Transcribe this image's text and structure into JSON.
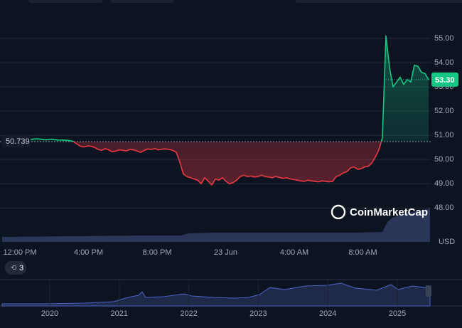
{
  "chart_data": {
    "type": "line",
    "values": [
      50.88,
      50.9,
      50.87,
      50.86,
      50.88,
      50.85,
      50.86,
      50.84,
      50.83,
      50.85,
      50.86,
      50.84,
      50.82,
      50.83,
      50.84,
      50.82,
      50.8,
      50.81,
      50.8,
      50.78,
      50.75,
      50.65,
      50.55,
      50.52,
      50.56,
      50.55,
      50.5,
      50.42,
      50.38,
      50.45,
      50.4,
      50.32,
      50.35,
      50.4,
      50.38,
      50.36,
      50.42,
      50.4,
      50.35,
      50.3,
      50.38,
      50.44,
      50.42,
      50.45,
      50.4,
      50.43,
      50.44,
      50.42,
      50.38,
      50.3,
      49.9,
      49.4,
      49.3,
      49.25,
      49.2,
      49.15,
      49.0,
      49.25,
      49.1,
      48.95,
      49.2,
      49.15,
      49.25,
      49.1,
      49.0,
      49.05,
      49.15,
      49.3,
      49.35,
      49.3,
      49.32,
      49.28,
      49.3,
      49.35,
      49.3,
      49.28,
      49.25,
      49.3,
      49.26,
      49.22,
      49.25,
      49.2,
      49.18,
      49.15,
      49.12,
      49.1,
      49.15,
      49.12,
      49.1,
      49.08,
      49.12,
      49.1,
      49.08,
      49.1,
      49.3,
      49.35,
      49.45,
      49.5,
      49.65,
      49.7,
      49.6,
      49.62,
      49.7,
      49.72,
      49.85,
      50.1,
      50.4,
      50.9,
      55.1,
      53.8,
      53.0,
      53.2,
      53.4,
      53.1,
      53.3,
      53.2,
      53.9,
      53.85,
      53.6,
      53.55,
      53.3
    ],
    "baseline": 50.739,
    "current_price": {
      "value": 53.3,
      "label": "53.30"
    },
    "up_color": "#16c784",
    "down_color": "#ea3943",
    "ylim": [
      46.6,
      56.0
    ],
    "yticks": [
      {
        "value": 48,
        "label": "48.00"
      },
      {
        "value": 49,
        "label": "49.00"
      },
      {
        "value": 50,
        "label": "50.00"
      },
      {
        "value": 51,
        "label": "51.00"
      },
      {
        "value": 52,
        "label": "52.00"
      },
      {
        "value": 53,
        "label": "53.00"
      },
      {
        "value": 54,
        "label": "54.00"
      },
      {
        "value": 55,
        "label": "55.00"
      }
    ],
    "grid": true,
    "x_labels": [
      "12:00 PM",
      "4:00 PM",
      "8:00 PM",
      "23 Jun",
      "4:00 AM",
      "8:00 AM"
    ],
    "currency": "USD",
    "watermark": "CoinMarketCap",
    "badge": "3",
    "navigator_labels": [
      "2020",
      "2021",
      "2022",
      "2023",
      "2024",
      "2025"
    ]
  }
}
